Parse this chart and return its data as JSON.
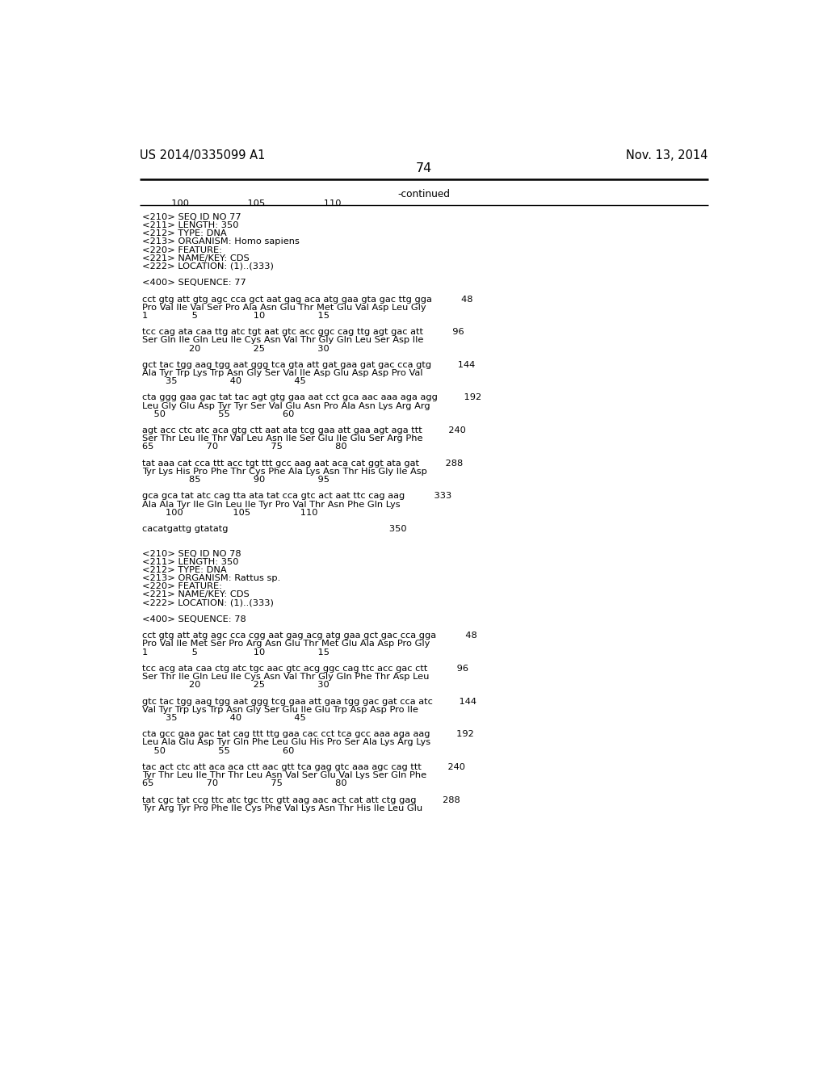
{
  "page_left": "US 2014/0335099 A1",
  "page_right": "Nov. 13, 2014",
  "page_number": "74",
  "continued_label": "-continued",
  "ruler_numbers": "          100                    105                    110",
  "background_color": "#ffffff",
  "text_color": "#000000",
  "font_size": 8.2,
  "header_font_size": 10.5,
  "content": [
    "<210> SEQ ID NO 77",
    "<211> LENGTH: 350",
    "<212> TYPE: DNA",
    "<213> ORGANISM: Homo sapiens",
    "<220> FEATURE:",
    "<221> NAME/KEY: CDS",
    "<222> LOCATION: (1)..(333)",
    "",
    "<400> SEQUENCE: 77",
    "",
    "cct gtg att gtg agc cca gct aat gag aca atg gaa gta gac ttg gga          48",
    "Pro Val Ile Val Ser Pro Ala Asn Glu Thr Met Glu Val Asp Leu Gly",
    "1               5                   10                  15",
    "",
    "tcc cag ata caa ttg atc tgt aat gtc acc ggc cag ttg agt gac att          96",
    "Ser Gln Ile Gln Leu Ile Cys Asn Val Thr Gly Gln Leu Ser Asp Ile",
    "                20                  25                  30",
    "",
    "gct tac tgg aag tgg aat ggg tca gta att gat gaa gat gac cca gtg         144",
    "Ala Tyr Trp Lys Trp Asn Gly Ser Val Ile Asp Glu Asp Asp Pro Val",
    "        35                  40                  45",
    "",
    "cta ggg gaa gac tat tac agt gtg gaa aat cct gca aac aaa aga agg         192",
    "Leu Gly Glu Asp Tyr Tyr Ser Val Glu Asn Pro Ala Asn Lys Arg Arg",
    "    50                  55                  60",
    "",
    "agt acc ctc atc aca gtg ctt aat ata tcg gaa att gaa agt aga ttt         240",
    "Ser Thr Leu Ile Thr Val Leu Asn Ile Ser Glu Ile Glu Ser Arg Phe",
    "65                  70                  75                  80",
    "",
    "tat aaa cat cca ttt acc tgt ttt gcc aag aat aca cat ggt ata gat         288",
    "Tyr Lys His Pro Phe Thr Cys Phe Ala Lys Asn Thr His Gly Ile Asp",
    "                85                  90                  95",
    "",
    "gca gca tat atc cag tta ata tat cca gtc act aat ttc cag aag          333",
    "Ala Ala Tyr Ile Gln Leu Ile Tyr Pro Val Thr Asn Phe Gln Lys",
    "        100                 105                 110",
    "",
    "cacatgattg gtatatg                                                       350",
    "",
    "",
    "<210> SEQ ID NO 78",
    "<211> LENGTH: 350",
    "<212> TYPE: DNA",
    "<213> ORGANISM: Rattus sp.",
    "<220> FEATURE:",
    "<221> NAME/KEY: CDS",
    "<222> LOCATION: (1)..(333)",
    "",
    "<400> SEQUENCE: 78",
    "",
    "cct gtg att atg agc cca cgg aat gag acg atg gaa gct gac cca gga          48",
    "Pro Val Ile Met Ser Pro Arg Asn Glu Thr Met Glu Ala Asp Pro Gly",
    "1               5                   10                  15",
    "",
    "tcc acg ata caa ctg atc tgc aac gtc acg ggc cag ttc acc gac ctt          96",
    "Ser Thr Ile Gln Leu Ile Cys Asn Val Thr Gly Gln Phe Thr Asp Leu",
    "                20                  25                  30",
    "",
    "gtc tac tgg aag tgg aat ggg tcg gaa att gaa tgg gac gat cca atc         144",
    "Val Tyr Trp Lys Trp Asn Gly Ser Glu Ile Glu Trp Asp Asp Pro Ile",
    "        35                  40                  45",
    "",
    "cta gcc gaa gac tat cag ttt ttg gaa cac cct tca gcc aaa aga aag         192",
    "Leu Ala Glu Asp Tyr Gln Phe Leu Glu His Pro Ser Ala Lys Arg Lys",
    "    50                  55                  60",
    "",
    "tac act ctc att aca aca ctt aac gtt tca gag gtc aaa agc cag ttt         240",
    "Tyr Thr Leu Ile Thr Thr Leu Asn Val Ser Glu Val Lys Ser Gln Phe",
    "65                  70                  75                  80",
    "",
    "tat cgc tat ccg ttc atc tgc ttc gtt aag aac act cat att ctg gag         288",
    "Tyr Arg Tyr Pro Phe Ile Cys Phe Val Lys Asn Thr His Ile Leu Glu"
  ]
}
